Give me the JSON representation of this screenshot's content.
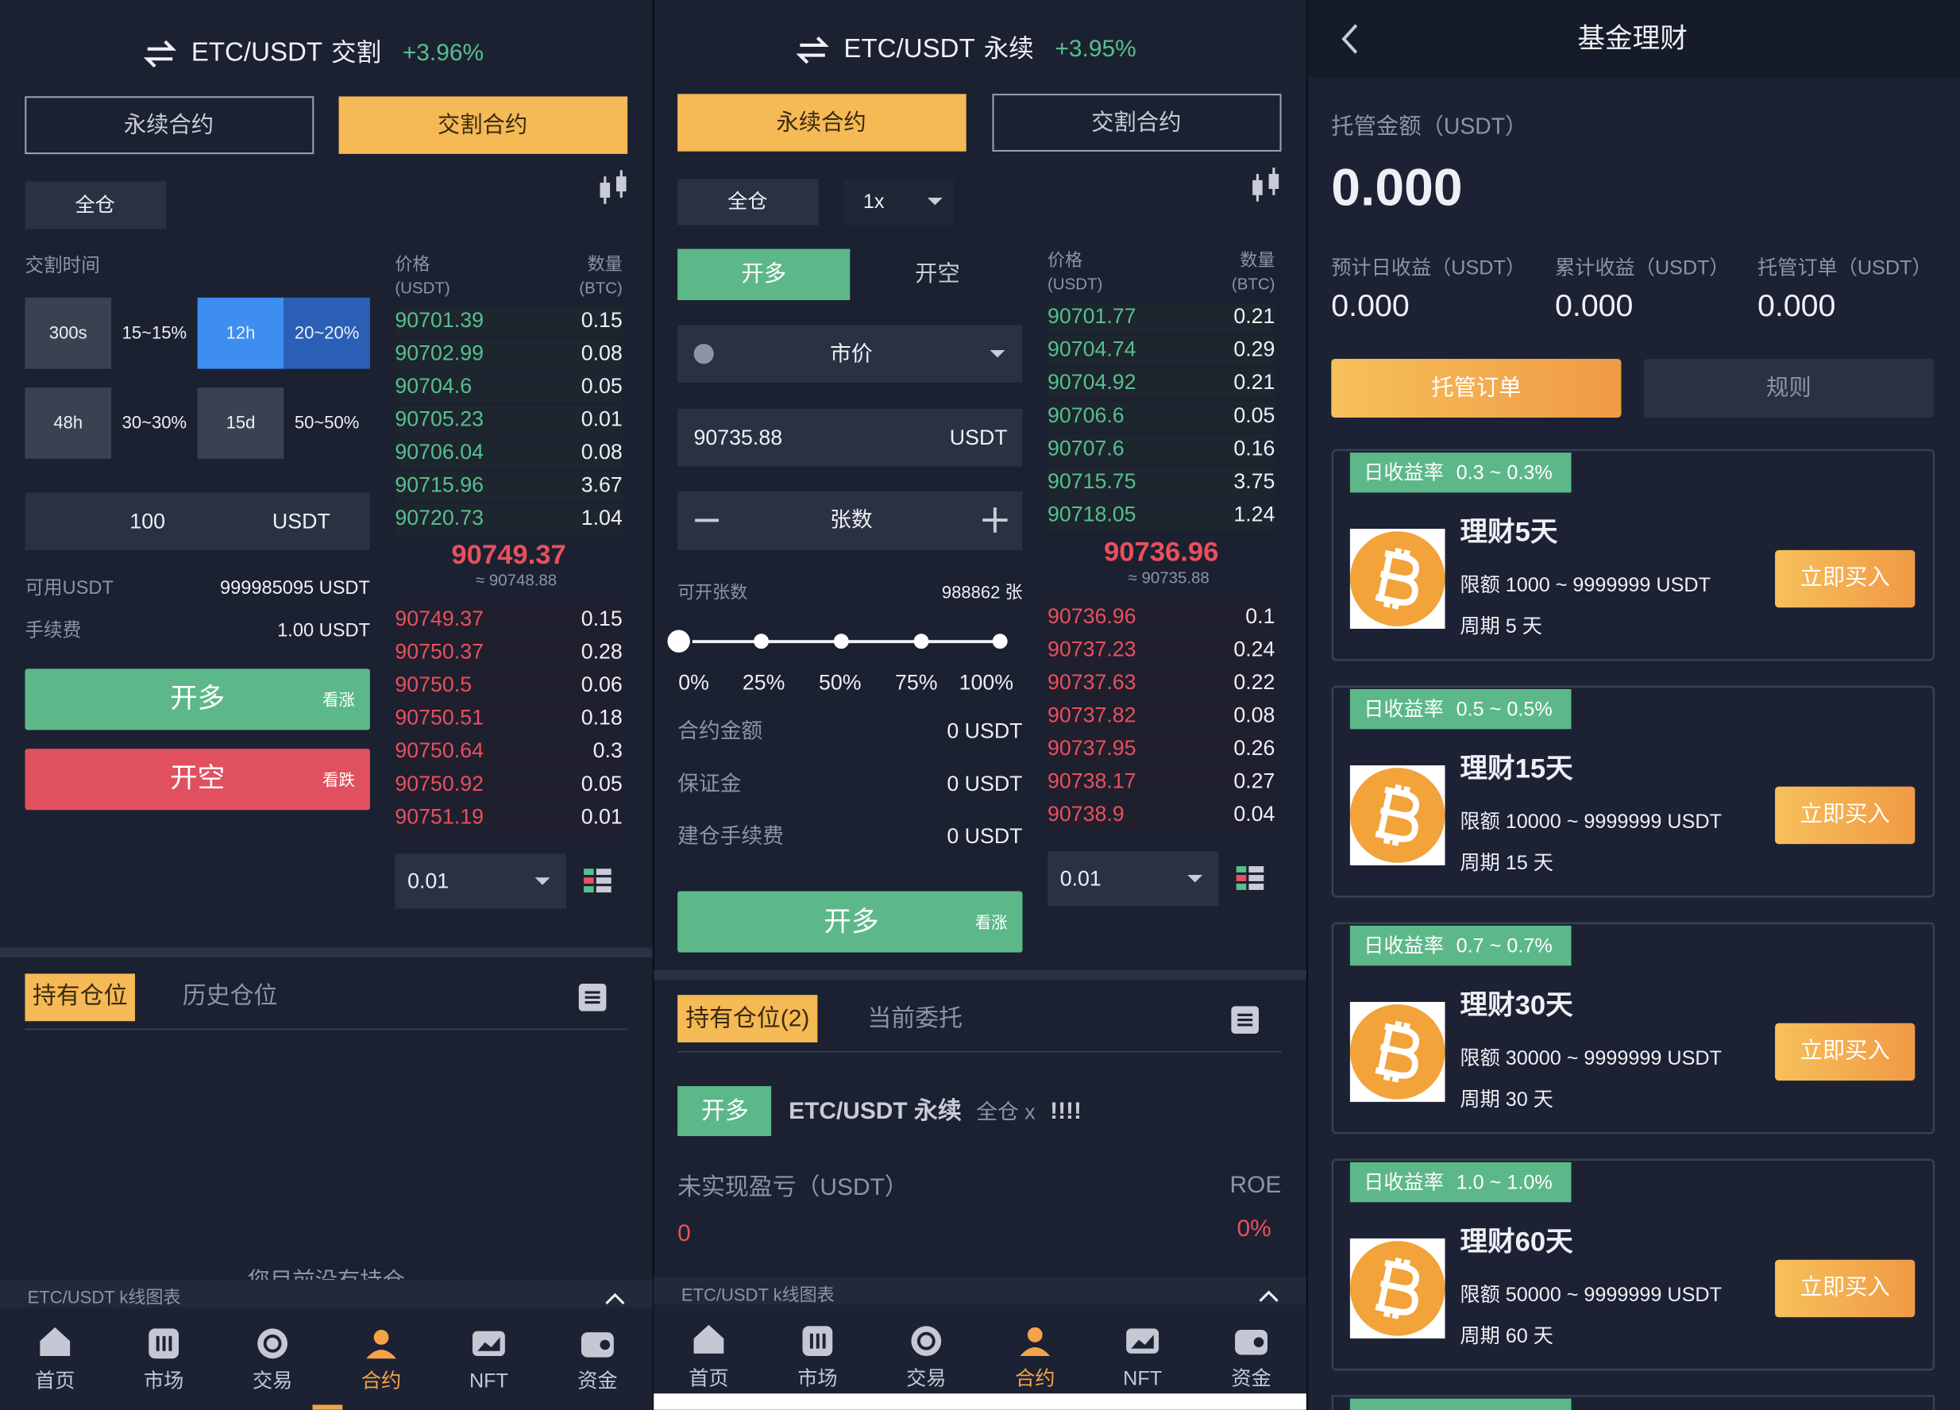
{
  "delivery": {
    "pair": "ETC/USDT",
    "mode": "交割",
    "change": "+3.96%",
    "tabs": [
      "永续合约",
      "交割合约"
    ],
    "active_tab": 1,
    "margin_mode": "全仓",
    "time_label": "交割时间",
    "periods": [
      {
        "time": "300s",
        "range": "15~15%"
      },
      {
        "time": "12h",
        "range": "20~20%"
      },
      {
        "time": "48h",
        "range": "30~30%"
      },
      {
        "time": "15d",
        "range": "50~50%"
      }
    ],
    "selected_period": 1,
    "amount": "100",
    "amount_unit": "USDT",
    "available_label": "可用USDT",
    "available": "999985095 USDT",
    "fee_label": "手续费",
    "fee": "1.00 USDT",
    "long": "开多",
    "long_hint": "看涨",
    "short": "开空",
    "short_hint": "看跌",
    "book": {
      "price_header": "价格",
      "price_unit": "(USDT)",
      "qty_header": "数量",
      "qty_unit": "(BTC)",
      "bids": [
        {
          "price": 90701.39,
          "qty": 0.15
        },
        {
          "price": 90702.99,
          "qty": 0.08
        },
        {
          "price": 90704.6,
          "qty": 0.05
        },
        {
          "price": 90705.23,
          "qty": 0.01
        },
        {
          "price": 90706.04,
          "qty": 0.08
        },
        {
          "price": 90715.96,
          "qty": 3.67
        },
        {
          "price": 90720.73,
          "qty": 1.04
        }
      ],
      "last": 90749.37,
      "index": "≈ 90748.88",
      "asks": [
        {
          "price": 90749.37,
          "qty": 0.15
        },
        {
          "price": 90750.37,
          "qty": 0.28
        },
        {
          "price": 90750.5,
          "qty": 0.06
        },
        {
          "price": 90750.51,
          "qty": 0.18
        },
        {
          "price": 90750.64,
          "qty": 0.3
        },
        {
          "price": 90750.92,
          "qty": 0.05
        },
        {
          "price": 90751.19,
          "qty": 0.01
        }
      ],
      "precision": "0.01"
    },
    "position_tabs": [
      "持有仓位",
      "历史仓位"
    ],
    "empty": "您目前没有持仓",
    "kline": "ETC/USDT k线图表"
  },
  "perpetual": {
    "pair": "ETC/USDT",
    "mode": "永续",
    "change": "+3.95%",
    "tabs": [
      "永续合约",
      "交割合约"
    ],
    "active_tab": 0,
    "margin_mode": "全仓",
    "leverage": "1x",
    "sides": [
      "开多",
      "开空"
    ],
    "active_side": 0,
    "order_type": "市价",
    "price": "90735.88",
    "price_unit": "USDT",
    "qty_label": "张数",
    "max_label": "可开张数",
    "max": "988862 张",
    "slider": [
      "0%",
      "25%",
      "50%",
      "75%",
      "100%"
    ],
    "summary": [
      {
        "label": "合约金额",
        "value": "0 USDT"
      },
      {
        "label": "保证金",
        "value": "0 USDT"
      },
      {
        "label": "建仓手续费",
        "value": "0 USDT"
      }
    ],
    "long": "开多",
    "long_hint": "看涨",
    "book": {
      "price_header": "价格",
      "price_unit": "(USDT)",
      "qty_header": "数量",
      "qty_unit": "(BTC)",
      "bids": [
        {
          "price": 90701.77,
          "qty": 0.21
        },
        {
          "price": 90704.74,
          "qty": 0.29
        },
        {
          "price": 90704.92,
          "qty": 0.21
        },
        {
          "price": 90706.6,
          "qty": 0.05
        },
        {
          "price": 90707.6,
          "qty": 0.16
        },
        {
          "price": 90715.75,
          "qty": 3.75
        },
        {
          "price": 90718.05,
          "qty": 1.24
        }
      ],
      "last": 90736.96,
      "index": "≈ 90735.88",
      "asks": [
        {
          "price": 90736.96,
          "qty": 0.1
        },
        {
          "price": 90737.23,
          "qty": 0.24
        },
        {
          "price": 90737.63,
          "qty": 0.22
        },
        {
          "price": 90737.82,
          "qty": 0.08
        },
        {
          "price": 90737.95,
          "qty": 0.26
        },
        {
          "price": 90738.17,
          "qty": 0.27
        },
        {
          "price": 90738.9,
          "qty": 0.04
        }
      ],
      "precision": "0.01"
    },
    "position_tabs": [
      "持有仓位(2)",
      "当前委托"
    ],
    "position": {
      "side": "开多",
      "symbol": "ETC/USDT 永续",
      "margin": "全仓 x",
      "leverage": "!!!!",
      "pnl_label": "未实现盈亏（USDT）",
      "pnl": "0",
      "roe_label": "ROE",
      "roe": "0%"
    },
    "kline": "ETC/USDT k线图表"
  },
  "fund": {
    "title": "基金理财",
    "custody_label": "托管金额（USDT）",
    "custody": "0.000",
    "stats": [
      {
        "label": "预计日收益（USDT）",
        "value": "0.000"
      },
      {
        "label": "累计收益（USDT）",
        "value": "0.000"
      },
      {
        "label": "托管订单（USDT）",
        "value": "0.000"
      }
    ],
    "buttons": [
      "托管订单",
      "规则"
    ],
    "products": [
      {
        "rate_label": "日收益率",
        "rate": "0.3 ~ 0.3%",
        "name": "理财5天",
        "limit": "限额 1000 ~ 9999999 USDT",
        "period": "周期 5 天",
        "action": "立即买入"
      },
      {
        "rate_label": "日收益率",
        "rate": "0.5 ~ 0.5%",
        "name": "理财15天",
        "limit": "限额 10000 ~ 9999999 USDT",
        "period": "周期 15 天",
        "action": "立即买入"
      },
      {
        "rate_label": "日收益率",
        "rate": "0.7 ~ 0.7%",
        "name": "理财30天",
        "limit": "限额 30000 ~ 9999999 USDT",
        "period": "周期 30 天",
        "action": "立即买入"
      },
      {
        "rate_label": "日收益率",
        "rate": "1.0 ~ 1.0%",
        "name": "理财60天",
        "limit": "限额 50000 ~ 9999999 USDT",
        "period": "周期 60 天",
        "action": "立即买入"
      }
    ]
  },
  "nav": {
    "items": [
      "首页",
      "市场",
      "交易",
      "合约",
      "NFT",
      "资金"
    ],
    "active": 3
  }
}
